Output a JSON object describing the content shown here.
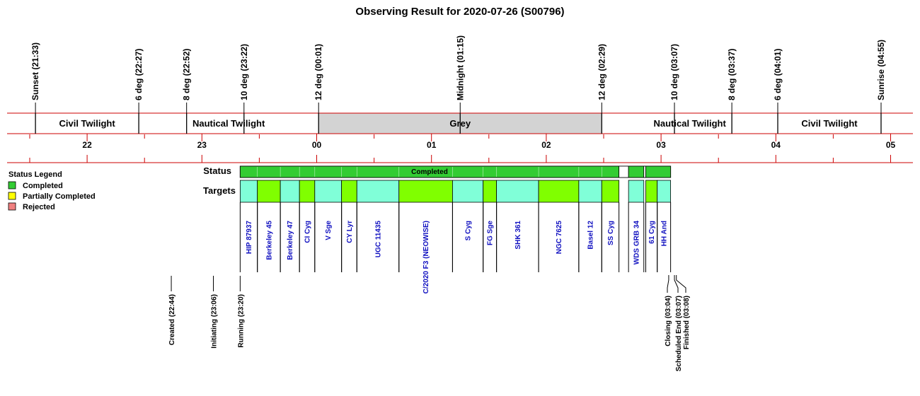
{
  "title": "Observing Result for 2020-07-26 (S00796)",
  "colors": {
    "grid_red": "#cc0000",
    "grey_band": "#d3d3d3",
    "completed": "#33cc33",
    "partially_completed": "#ffff00",
    "rejected": "#f08080",
    "target_cyan": "#80ffd8",
    "target_green": "#80ff00",
    "target_text": "#1010c0"
  },
  "chart_data": {
    "type": "timeline",
    "x_unit": "hour of night (24h clock, >24 = after midnight)",
    "xlim": [
      21.0,
      29.2
    ],
    "sun_events": [
      {
        "label": "Sunset (21:33)",
        "t": 21.55
      },
      {
        "label": "6 deg (22:27)",
        "t": 22.45
      },
      {
        "label": "8 deg (22:52)",
        "t": 22.8667
      },
      {
        "label": "10 deg (23:22)",
        "t": 23.3667
      },
      {
        "label": "12 deg (00:01)",
        "t": 24.0167
      },
      {
        "label": "Midnight (01:15)",
        "t": 25.25
      },
      {
        "label": "12 deg (02:29)",
        "t": 26.4833
      },
      {
        "label": "10 deg (03:07)",
        "t": 27.1167
      },
      {
        "label": "8 deg (03:37)",
        "t": 27.6167
      },
      {
        "label": "6 deg (04:01)",
        "t": 28.0167
      },
      {
        "label": "Sunrise (04:55)",
        "t": 28.9167
      }
    ],
    "twilight_bands": [
      {
        "label": "Civil Twilight",
        "start": 21.55,
        "end": 22.45,
        "grey": false
      },
      {
        "label": "Nautical Twilight",
        "start": 22.45,
        "end": 24.0167,
        "grey": false
      },
      {
        "label": "Grey",
        "start": 24.0167,
        "end": 26.4833,
        "grey": true
      },
      {
        "label": "Nautical Twilight",
        "start": 26.4833,
        "end": 28.0167,
        "grey": false
      },
      {
        "label": "Civil Twilight",
        "start": 28.0167,
        "end": 28.9167,
        "grey": false
      }
    ],
    "hour_ticks": [
      {
        "label": "22",
        "t": 22
      },
      {
        "label": "23",
        "t": 23
      },
      {
        "label": "00",
        "t": 24
      },
      {
        "label": "01",
        "t": 25
      },
      {
        "label": "02",
        "t": 26
      },
      {
        "label": "03",
        "t": 27
      },
      {
        "label": "04",
        "t": 28
      },
      {
        "label": "05",
        "t": 29
      }
    ],
    "status_row_label": "Status",
    "status_segments": [
      {
        "label": "Completed",
        "start": 23.3333,
        "end": 26.6333,
        "status": "completed"
      },
      {
        "label": "",
        "start": 26.6333,
        "end": 26.7167,
        "status": "none"
      },
      {
        "label": "",
        "start": 26.7167,
        "end": 26.85,
        "status": "completed"
      },
      {
        "label": "",
        "start": 26.85,
        "end": 26.8667,
        "status": "none"
      },
      {
        "label": "",
        "start": 26.8667,
        "end": 27.0833,
        "status": "completed"
      }
    ],
    "targets_row_label": "Targets",
    "targets": [
      {
        "name": "HIP 87937",
        "start": 23.3333,
        "end": 23.4833,
        "color": "cyan"
      },
      {
        "name": "Berkeley 45",
        "start": 23.4833,
        "end": 23.6833,
        "color": "green"
      },
      {
        "name": "Berkeley 47",
        "start": 23.6833,
        "end": 23.85,
        "color": "cyan"
      },
      {
        "name": "CI Cyg",
        "start": 23.85,
        "end": 23.9833,
        "color": "green"
      },
      {
        "name": "V Sge",
        "start": 23.9833,
        "end": 24.2167,
        "color": "cyan"
      },
      {
        "name": "CY Lyr",
        "start": 24.2167,
        "end": 24.35,
        "color": "green"
      },
      {
        "name": "UGC 11435",
        "start": 24.35,
        "end": 24.7167,
        "color": "cyan"
      },
      {
        "name": "C/2020 F3 (NEOWISE)",
        "start": 24.7167,
        "end": 25.1833,
        "color": "green"
      },
      {
        "name": "S Cyg",
        "start": 25.1833,
        "end": 25.45,
        "color": "cyan"
      },
      {
        "name": "FG Sge",
        "start": 25.45,
        "end": 25.5667,
        "color": "green"
      },
      {
        "name": "SHK 361",
        "start": 25.5667,
        "end": 25.9333,
        "color": "cyan"
      },
      {
        "name": "NGC 7625",
        "start": 25.9333,
        "end": 26.2833,
        "color": "green"
      },
      {
        "name": "Basel 12",
        "start": 26.2833,
        "end": 26.4833,
        "color": "cyan"
      },
      {
        "name": "SS Cyg",
        "start": 26.4833,
        "end": 26.6333,
        "color": "green"
      },
      {
        "name": "WDS GRB 34",
        "start": 26.7167,
        "end": 26.85,
        "color": "cyan"
      },
      {
        "name": "61 Cyg",
        "start": 26.8667,
        "end": 26.9667,
        "color": "green"
      },
      {
        "name": "HH And",
        "start": 26.9667,
        "end": 27.0833,
        "color": "cyan"
      }
    ],
    "process_events": [
      {
        "label": "Created (22:44)",
        "t": 22.7333
      },
      {
        "label": "Initiating (23:06)",
        "t": 23.1
      },
      {
        "label": "Running (23:20)",
        "t": 23.3333
      },
      {
        "label": "Closing (03:04)",
        "t": 27.0667
      },
      {
        "label": "Scheduled End (03:07)",
        "t": 27.1167
      },
      {
        "label": "Finished (03:08)",
        "t": 27.1333
      }
    ],
    "legend": {
      "title": "Status Legend",
      "placement": "left",
      "items": [
        {
          "label": "Completed",
          "color": "#33cc33"
        },
        {
          "label": "Partially Completed",
          "color": "#ffff00"
        },
        {
          "label": "Rejected",
          "color": "#f08080"
        }
      ]
    }
  }
}
